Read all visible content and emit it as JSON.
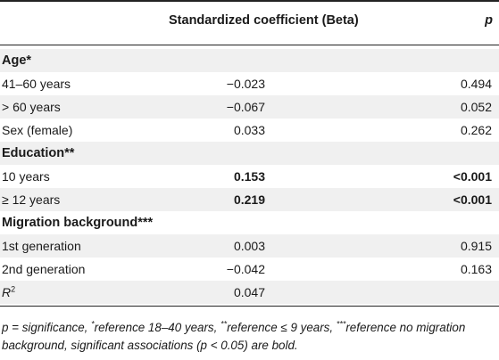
{
  "table": {
    "header": {
      "col_beta": "Standardized coefficient (Beta)",
      "col_p": "p"
    },
    "rows": [
      {
        "label": "Age*",
        "group": true,
        "beta": "",
        "p": ""
      },
      {
        "label": "41–60 years",
        "group": false,
        "beta": "−0.023",
        "p": "0.494",
        "bold": false
      },
      {
        "label": "> 60 years",
        "group": false,
        "beta": "−0.067",
        "p": "0.052",
        "bold": false
      },
      {
        "label": "Sex (female)",
        "group": false,
        "beta": "0.033",
        "p": "0.262",
        "bold": false
      },
      {
        "label": "Education**",
        "group": true,
        "beta": "",
        "p": ""
      },
      {
        "label": "10 years",
        "group": false,
        "beta": "0.153",
        "p": "<0.001",
        "bold": true
      },
      {
        "label": "≥ 12 years",
        "group": false,
        "beta": "0.219",
        "p": "<0.001",
        "bold": true
      },
      {
        "label": "Migration background***",
        "group": true,
        "beta": "",
        "p": ""
      },
      {
        "label": "1st generation",
        "group": false,
        "beta": "0.003",
        "p": "0.915",
        "bold": false
      },
      {
        "label": "2nd generation",
        "group": false,
        "beta": "−0.042",
        "p": "0.163",
        "bold": false
      },
      {
        "label_main": "R",
        "label_sup": "2",
        "group": false,
        "beta": "0.047",
        "p": "",
        "bold": false
      }
    ],
    "footnote": {
      "p_def": "p = significance, ",
      "star1": "*",
      "ref1": "reference 18–40 years, ",
      "star2": "**",
      "ref2": "reference ≤ 9 years, ",
      "star3": "***",
      "ref3": "reference no migration background, significant associations (p < 0.05) are bold."
    }
  }
}
